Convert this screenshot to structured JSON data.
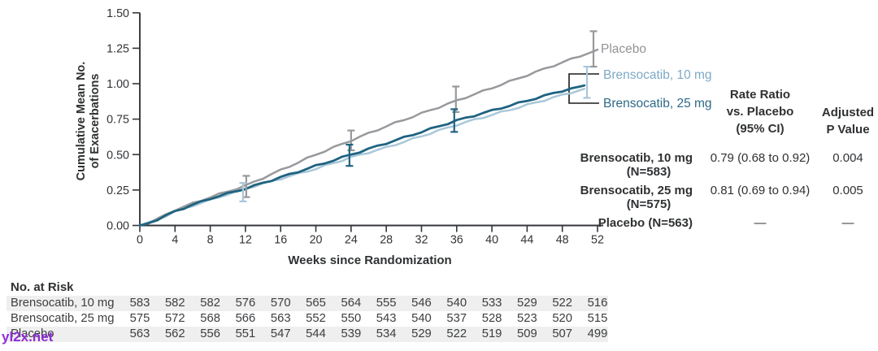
{
  "watermark": {
    "text": "yl2x.net"
  },
  "chart_data": {
    "type": "line",
    "title": "",
    "xlabel": "Weeks since Randomization",
    "ylabel": "Cumulative Mean No.\nof Exacerbations",
    "xlim": [
      0,
      52
    ],
    "ylim": [
      0,
      1.5
    ],
    "grid": false,
    "x_ticks": [
      0,
      4,
      8,
      12,
      16,
      20,
      24,
      28,
      32,
      36,
      40,
      44,
      48,
      52
    ],
    "y_ticks": [
      "0.00",
      "0.25",
      "0.50",
      "0.75",
      "1.00",
      "1.25",
      "1.50"
    ],
    "x": [
      0,
      4,
      8,
      12,
      16,
      20,
      24,
      28,
      32,
      36,
      40,
      44,
      48,
      52
    ],
    "series": [
      {
        "name": "Placebo",
        "label": "Placebo",
        "color": "#97999c",
        "end_week": 52,
        "values": [
          0,
          0.11,
          0.2,
          0.28,
          0.39,
          0.5,
          0.6,
          0.7,
          0.79,
          0.88,
          0.97,
          1.06,
          1.15,
          1.24
        ]
      },
      {
        "name": "Brensocatib, 10 mg",
        "label": "Brensocatib, 10 mg",
        "color": "#a9c7d9",
        "end_week": 50.5,
        "values": [
          0,
          0.1,
          0.18,
          0.26,
          0.33,
          0.4,
          0.48,
          0.55,
          0.63,
          0.71,
          0.78,
          0.85,
          0.92,
          0.99
        ]
      },
      {
        "name": "Brensocatib, 25 mg",
        "label": "Brensocatib, 25 mg",
        "color": "#1f6380",
        "end_week": 50.5,
        "values": [
          0,
          0.1,
          0.19,
          0.26,
          0.34,
          0.42,
          0.5,
          0.58,
          0.66,
          0.74,
          0.81,
          0.88,
          0.95,
          1.01
        ]
      }
    ],
    "error_bars_95ci": [
      {
        "series": "Placebo",
        "week": 12,
        "low": 0.2,
        "high": 0.35
      },
      {
        "series": "Brensocatib, 10 mg",
        "week": 12,
        "low": 0.17,
        "high": 0.3
      },
      {
        "series": "Placebo",
        "week": 24,
        "low": 0.53,
        "high": 0.67
      },
      {
        "series": "Brensocatib, 25 mg",
        "week": 24,
        "low": 0.42,
        "high": 0.57
      },
      {
        "series": "Placebo",
        "week": 36,
        "low": 0.8,
        "high": 0.98
      },
      {
        "series": "Brensocatib, 25 mg",
        "week": 36,
        "low": 0.66,
        "high": 0.82
      },
      {
        "series": "Placebo",
        "week": 52,
        "low": 1.12,
        "high": 1.37
      },
      {
        "series": "Brensocatib, 10 mg",
        "week": 52,
        "low": 0.9,
        "high": 1.12
      }
    ]
  },
  "stats_table": {
    "rate_header": "Rate Ratio\nvs. Placebo\n(95% CI)",
    "p_header": "Adjusted\nP Value",
    "rows": [
      {
        "label_line1": "Brensocatib, 10 mg",
        "label_line2": "(N=583)",
        "rate": "0.79 (0.68 to 0.92)",
        "p": "0.004"
      },
      {
        "label_line1": "Brensocatib, 25 mg",
        "label_line2": "(N=575)",
        "rate": "0.81 (0.69 to 0.94)",
        "p": "0.005"
      },
      {
        "label_line1": "Placebo (N=563)",
        "rate": "—",
        "p": "—"
      }
    ]
  },
  "risk_table": {
    "title": "No. at Risk",
    "weeks": [
      0,
      4,
      8,
      12,
      16,
      20,
      24,
      28,
      32,
      36,
      40,
      44,
      48,
      52
    ],
    "rows": [
      {
        "label": "Brensocatib, 10 mg",
        "values": [
          583,
          582,
          582,
          576,
          570,
          565,
          564,
          555,
          546,
          540,
          533,
          529,
          522,
          516
        ]
      },
      {
        "label": "Brensocatib, 25 mg",
        "values": [
          575,
          572,
          568,
          566,
          563,
          552,
          550,
          543,
          540,
          537,
          528,
          523,
          520,
          515
        ]
      },
      {
        "label": "Placebo",
        "values": [
          563,
          562,
          556,
          551,
          547,
          544,
          539,
          534,
          529,
          522,
          519,
          509,
          507,
          499
        ]
      }
    ]
  },
  "colors": {
    "placebo_line": "#97999c",
    "brensocatib10_line": "#a9c7d9",
    "brensocatib25_line": "#1f6380",
    "axis": "#333538",
    "tick_text": "#323437",
    "zebra_stripe": "#efefef",
    "bracket": "#1b1b1b",
    "watermark": "#8e2ed6"
  }
}
